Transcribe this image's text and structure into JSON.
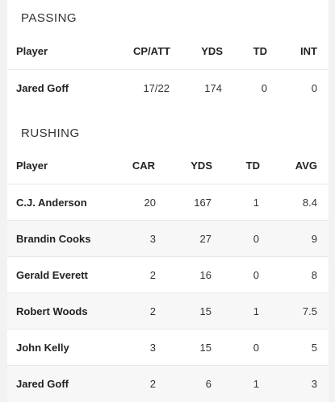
{
  "passing": {
    "title": "PASSING",
    "headers": [
      "Player",
      "CP/ATT",
      "YDS",
      "TD",
      "INT"
    ],
    "rows": [
      [
        "Jared Goff",
        "17/22",
        "174",
        "0",
        "0"
      ]
    ]
  },
  "rushing": {
    "title": "RUSHING",
    "headers": [
      "Player",
      "CAR",
      "YDS",
      "TD",
      "AVG"
    ],
    "rows": [
      [
        "C.J. Anderson",
        "20",
        "167",
        "1",
        "8.4"
      ],
      [
        "Brandin Cooks",
        "3",
        "27",
        "0",
        "9"
      ],
      [
        "Gerald Everett",
        "2",
        "16",
        "0",
        "8"
      ],
      [
        "Robert Woods",
        "2",
        "15",
        "1",
        "7.5"
      ],
      [
        "John Kelly",
        "3",
        "15",
        "0",
        "5"
      ],
      [
        "Jared Goff",
        "2",
        "6",
        "1",
        "3"
      ]
    ]
  }
}
